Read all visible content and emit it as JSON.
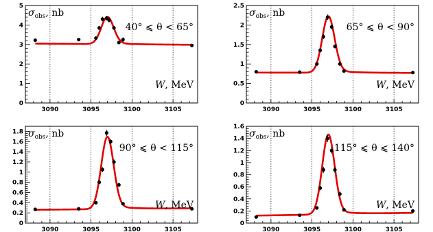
{
  "chart_data": [
    {
      "type": "line",
      "ylabel_symbol": "σ",
      "ylabel_sub": "obs",
      "ylabel_unit": ", nb",
      "xlabel_symbol": "W",
      "xlabel_unit": ", MeV",
      "range_label": "40° ⩽ θ < 65°",
      "xlim": [
        3087,
        3108
      ],
      "ylim": [
        0,
        5
      ],
      "xticks": [
        3090,
        3095,
        3100,
        3105
      ],
      "yticks": [
        0,
        1,
        2,
        3,
        4,
        5
      ],
      "points": {
        "x": [
          3088.2,
          3093.5,
          3095.6,
          3096.0,
          3096.4,
          3096.9,
          3097.2,
          3097.8,
          3098.4,
          3098.9,
          3107.3
        ],
        "y": [
          3.22,
          3.25,
          3.33,
          3.85,
          4.3,
          4.35,
          4.25,
          3.85,
          3.1,
          3.25,
          2.95
        ],
        "err": [
          0.05,
          0.05,
          0.08,
          0.1,
          0.12,
          0.12,
          0.12,
          0.1,
          0.08,
          0.12,
          0.05
        ]
      },
      "fit": {
        "base": 3.05,
        "tail": 2.98,
        "peak_x": 3097.0,
        "peak_height": 1.4,
        "width": 0.75
      },
      "series": [
        {
          "name": "",
          "color": "#e00000"
        }
      ]
    },
    {
      "type": "line",
      "ylabel_symbol": "σ",
      "ylabel_sub": "obs",
      "ylabel_unit": ", nb",
      "xlabel_symbol": "W",
      "xlabel_unit": ", MeV",
      "range_label": "65° ⩽ θ < 90°",
      "xlim": [
        3087,
        3108
      ],
      "ylim": [
        0,
        2.5
      ],
      "xticks": [
        3090,
        3095,
        3100,
        3105
      ],
      "yticks": [
        0,
        0.5,
        1,
        1.5,
        2,
        2.5
      ],
      "points": {
        "x": [
          3088.2,
          3093.5,
          3095.6,
          3096.0,
          3096.4,
          3096.9,
          3097.4,
          3097.8,
          3098.4,
          3098.9,
          3107.3
        ],
        "y": [
          0.8,
          0.79,
          1.0,
          1.35,
          1.7,
          2.2,
          1.95,
          1.45,
          1.0,
          0.82,
          0.78
        ],
        "err": [
          0.03,
          0.03,
          0.04,
          0.05,
          0.06,
          0.07,
          0.06,
          0.05,
          0.04,
          0.04,
          0.03
        ]
      },
      "fit": {
        "base": 0.78,
        "tail": 0.77,
        "peak_x": 3097.0,
        "peak_height": 1.45,
        "width": 0.75
      },
      "series": [
        {
          "name": "",
          "color": "#e00000"
        }
      ]
    },
    {
      "type": "line",
      "ylabel_symbol": "σ",
      "ylabel_sub": "obs",
      "ylabel_unit": ", nb",
      "xlabel_symbol": "W",
      "xlabel_unit": ", MeV",
      "range_label": "90° ⩽ θ < 115°",
      "xlim": [
        3087,
        3108
      ],
      "ylim": [
        0,
        1.9
      ],
      "xticks": [
        3090,
        3095,
        3100,
        3105
      ],
      "yticks": [
        0,
        0.2,
        0.4,
        0.6,
        0.8,
        1,
        1.2,
        1.4,
        1.6,
        1.8
      ],
      "points": {
        "x": [
          3088.2,
          3093.5,
          3095.6,
          3096.0,
          3096.4,
          3096.9,
          3097.4,
          3097.8,
          3098.4,
          3098.9,
          3107.3
        ],
        "y": [
          0.27,
          0.28,
          0.4,
          0.8,
          1.05,
          1.77,
          1.6,
          1.2,
          0.75,
          0.38,
          0.28
        ],
        "err": [
          0.02,
          0.02,
          0.03,
          0.04,
          0.05,
          0.06,
          0.05,
          0.05,
          0.04,
          0.03,
          0.02
        ]
      },
      "fit": {
        "base": 0.26,
        "tail": 0.29,
        "peak_x": 3097.0,
        "peak_height": 1.42,
        "width": 0.75
      },
      "series": [
        {
          "name": "",
          "color": "#e00000"
        }
      ]
    },
    {
      "type": "line",
      "ylabel_symbol": "σ",
      "ylabel_sub": "obs",
      "ylabel_unit": ", nb",
      "xlabel_symbol": "W",
      "xlabel_unit": ", MeV",
      "range_label": "115° ⩽ θ ⩽ 140°",
      "xlim": [
        3087,
        3108
      ],
      "ylim": [
        0,
        1.6
      ],
      "xticks": [
        3090,
        3095,
        3100,
        3105
      ],
      "yticks": [
        0,
        0.2,
        0.4,
        0.6,
        0.8,
        1,
        1.2,
        1.4,
        1.6
      ],
      "points": {
        "x": [
          3088.2,
          3093.5,
          3095.6,
          3096.0,
          3096.4,
          3096.9,
          3097.4,
          3097.8,
          3098.4,
          3098.9,
          3107.3
        ],
        "y": [
          0.1,
          0.13,
          0.25,
          0.58,
          0.88,
          1.4,
          1.2,
          0.88,
          0.48,
          0.22,
          0.2
        ],
        "err": [
          0.02,
          0.02,
          0.03,
          0.04,
          0.05,
          0.06,
          0.05,
          0.05,
          0.04,
          0.03,
          0.03
        ]
      },
      "fit": {
        "base": 0.12,
        "tail": 0.17,
        "peak_x": 3097.0,
        "peak_height": 1.32,
        "width": 0.75
      },
      "series": [
        {
          "name": "",
          "color": "#e00000"
        }
      ]
    }
  ]
}
